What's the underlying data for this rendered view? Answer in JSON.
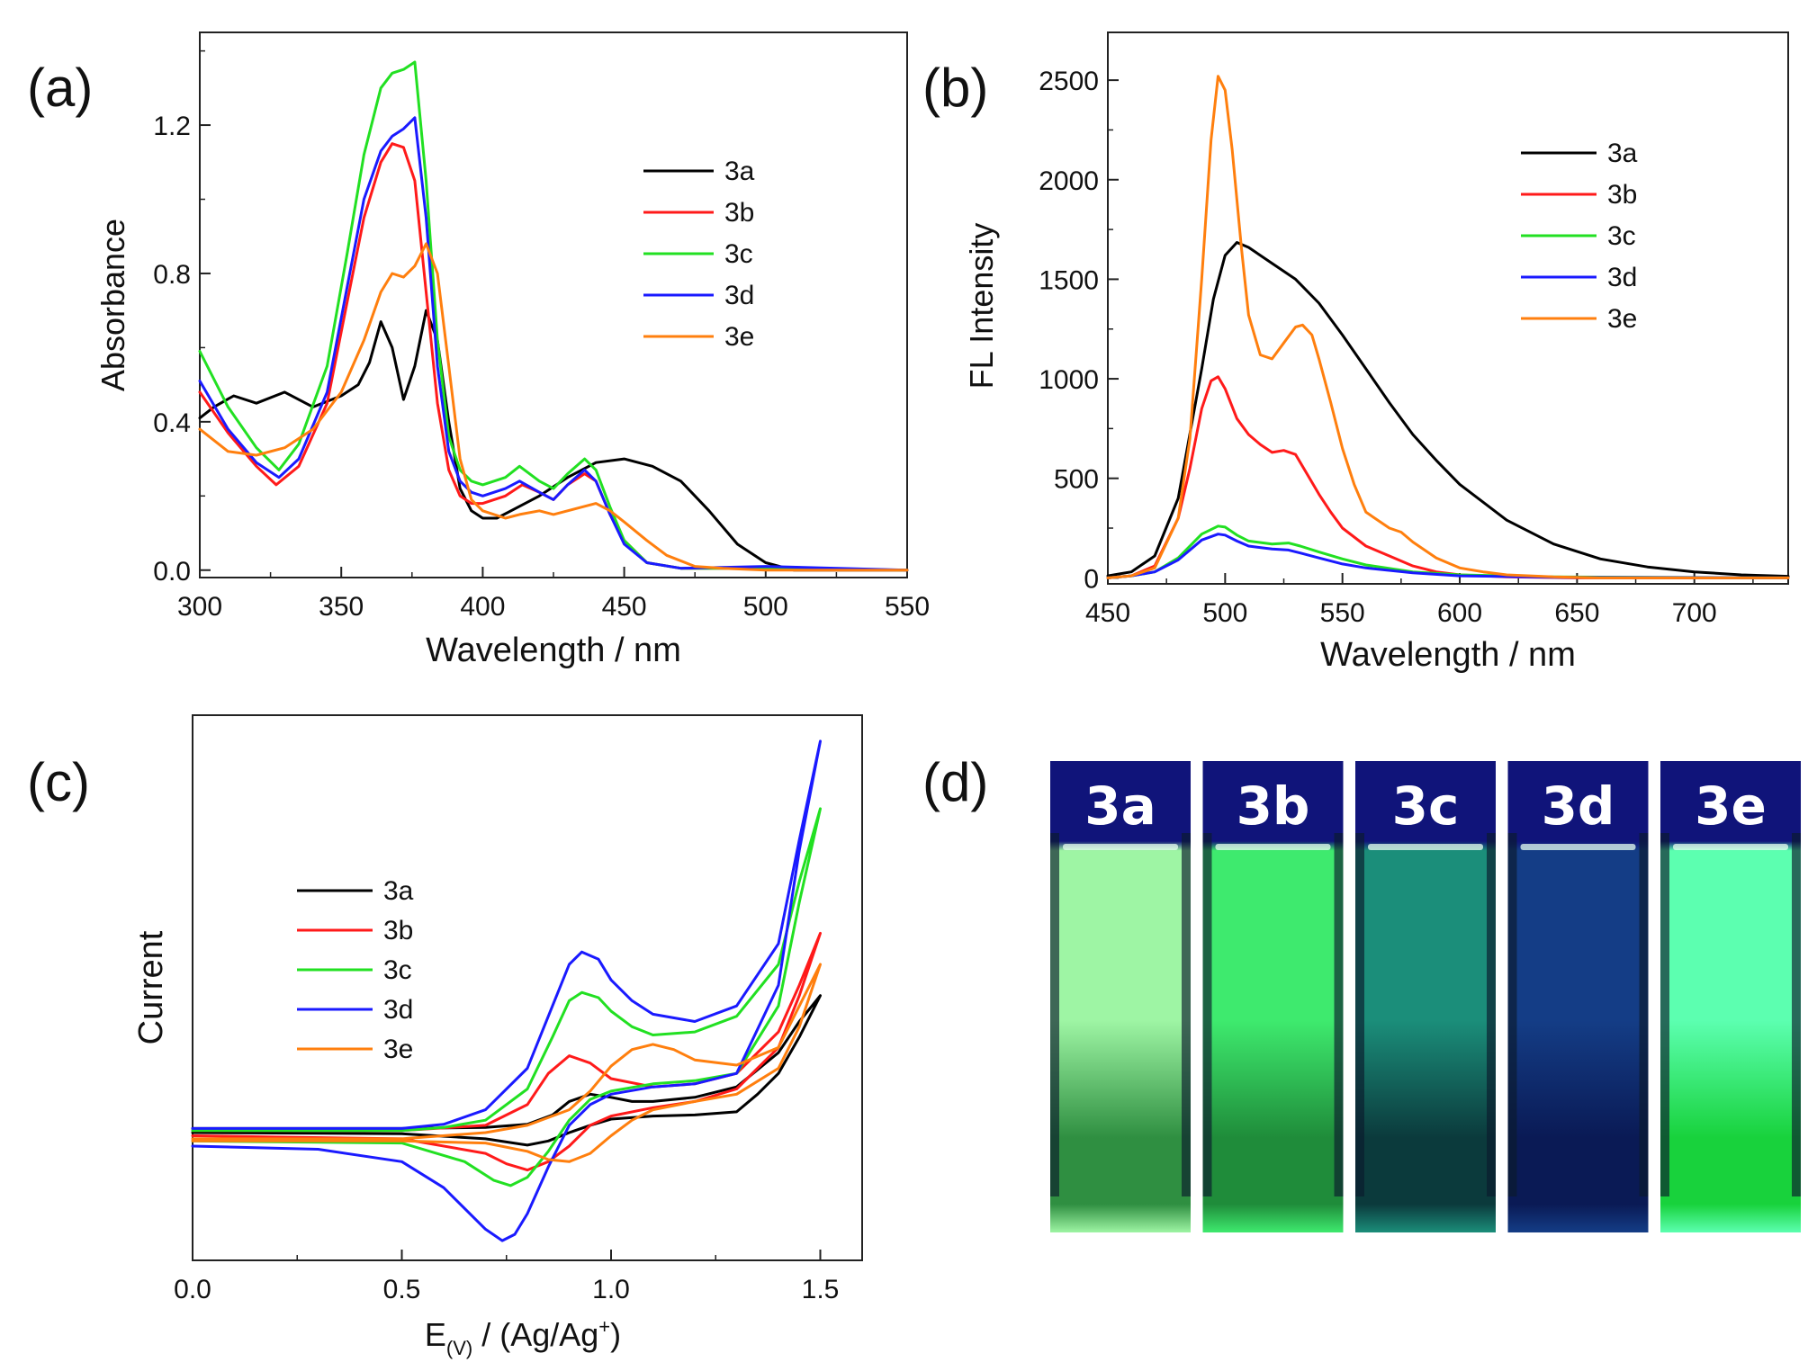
{
  "panel_labels": {
    "a": "(a)",
    "b": "(b)",
    "c": "(c)",
    "d": "(d)"
  },
  "series_colors": {
    "3a": "#000000",
    "3b": "#ff1a1a",
    "3c": "#22e022",
    "3d": "#1a1aff",
    "3e": "#ff7f0e"
  },
  "chart_data": [
    {
      "id": "a",
      "type": "line",
      "xlabel": "Wavelength / nm",
      "ylabel": "Absorbance",
      "xlim": [
        300,
        550
      ],
      "ylim": [
        -0.02,
        1.45
      ],
      "xticks": [
        300,
        350,
        400,
        450,
        500,
        550
      ],
      "yticks": [
        0.0,
        0.4,
        0.8,
        1.2
      ],
      "ytick_labels": [
        "0.0",
        "0.4",
        "0.8",
        "1.2"
      ],
      "legend_position": "right",
      "series": [
        {
          "name": "3a",
          "x": [
            300,
            305,
            312,
            320,
            330,
            340,
            350,
            356,
            360,
            364,
            368,
            372,
            376,
            380,
            384,
            388,
            392,
            396,
            400,
            405,
            410,
            420,
            430,
            440,
            450,
            460,
            470,
            480,
            490,
            500,
            510,
            550
          ],
          "y": [
            0.41,
            0.44,
            0.47,
            0.45,
            0.48,
            0.44,
            0.47,
            0.5,
            0.56,
            0.67,
            0.6,
            0.46,
            0.55,
            0.7,
            0.62,
            0.4,
            0.22,
            0.16,
            0.14,
            0.14,
            0.16,
            0.2,
            0.25,
            0.29,
            0.3,
            0.28,
            0.24,
            0.16,
            0.07,
            0.02,
            0.0,
            0.0
          ]
        },
        {
          "name": "3b",
          "x": [
            300,
            310,
            320,
            327,
            335,
            345,
            352,
            358,
            364,
            368,
            372,
            376,
            380,
            384,
            388,
            392,
            396,
            400,
            408,
            414,
            420,
            425,
            430,
            436,
            440,
            445,
            450,
            458,
            470,
            500,
            550
          ],
          "y": [
            0.48,
            0.37,
            0.28,
            0.23,
            0.28,
            0.45,
            0.72,
            0.95,
            1.1,
            1.15,
            1.14,
            1.05,
            0.75,
            0.45,
            0.27,
            0.2,
            0.18,
            0.18,
            0.2,
            0.23,
            0.21,
            0.19,
            0.23,
            0.26,
            0.24,
            0.15,
            0.08,
            0.02,
            0.005,
            0.005,
            0.0
          ]
        },
        {
          "name": "3c",
          "x": [
            300,
            310,
            320,
            328,
            335,
            345,
            352,
            358,
            364,
            368,
            372,
            376,
            380,
            384,
            388,
            392,
            396,
            400,
            408,
            413,
            420,
            425,
            430,
            436,
            440,
            445,
            450,
            458,
            470,
            500,
            550
          ],
          "y": [
            0.59,
            0.44,
            0.33,
            0.27,
            0.34,
            0.55,
            0.85,
            1.12,
            1.3,
            1.34,
            1.35,
            1.37,
            1.05,
            0.62,
            0.36,
            0.27,
            0.24,
            0.23,
            0.25,
            0.28,
            0.24,
            0.22,
            0.26,
            0.3,
            0.27,
            0.17,
            0.08,
            0.02,
            0.005,
            0.005,
            0.0
          ]
        },
        {
          "name": "3d",
          "x": [
            300,
            310,
            320,
            328,
            335,
            345,
            352,
            358,
            364,
            368,
            372,
            376,
            380,
            384,
            388,
            392,
            396,
            400,
            408,
            413,
            420,
            425,
            430,
            436,
            440,
            445,
            450,
            458,
            470,
            500,
            550
          ],
          "y": [
            0.51,
            0.38,
            0.29,
            0.25,
            0.3,
            0.48,
            0.76,
            1.0,
            1.13,
            1.17,
            1.19,
            1.22,
            0.95,
            0.55,
            0.32,
            0.24,
            0.21,
            0.2,
            0.22,
            0.24,
            0.21,
            0.19,
            0.23,
            0.27,
            0.24,
            0.15,
            0.07,
            0.02,
            0.005,
            0.01,
            0.0
          ]
        },
        {
          "name": "3e",
          "x": [
            300,
            310,
            320,
            330,
            340,
            350,
            358,
            364,
            368,
            372,
            376,
            380,
            384,
            388,
            392,
            396,
            400,
            408,
            413,
            420,
            425,
            430,
            435,
            440,
            445,
            450,
            458,
            465,
            475,
            485,
            500,
            550
          ],
          "y": [
            0.38,
            0.32,
            0.31,
            0.33,
            0.38,
            0.48,
            0.62,
            0.75,
            0.8,
            0.79,
            0.82,
            0.88,
            0.8,
            0.55,
            0.3,
            0.19,
            0.16,
            0.14,
            0.15,
            0.16,
            0.15,
            0.16,
            0.17,
            0.18,
            0.16,
            0.13,
            0.08,
            0.04,
            0.01,
            0.005,
            0.0,
            0.0
          ]
        }
      ]
    },
    {
      "id": "b",
      "type": "line",
      "xlabel": "Wavelength / nm",
      "ylabel": "FL Intensity",
      "xlim": [
        450,
        740
      ],
      "ylim": [
        -30,
        2740
      ],
      "xticks": [
        450,
        500,
        550,
        600,
        650,
        700
      ],
      "yticks": [
        0,
        500,
        1000,
        1500,
        2000,
        2500
      ],
      "legend_position": "top-right",
      "series": [
        {
          "name": "3a",
          "x": [
            450,
            460,
            470,
            480,
            490,
            495,
            500,
            505,
            510,
            520,
            530,
            540,
            550,
            560,
            570,
            580,
            590,
            600,
            620,
            640,
            660,
            680,
            700,
            720,
            740
          ],
          "y": [
            10,
            30,
            110,
            400,
            1050,
            1400,
            1620,
            1685,
            1660,
            1580,
            1500,
            1380,
            1220,
            1050,
            880,
            720,
            590,
            470,
            290,
            170,
            95,
            55,
            30,
            15,
            8
          ]
        },
        {
          "name": "3b",
          "x": [
            450,
            460,
            470,
            480,
            485,
            490,
            494,
            497,
            500,
            505,
            510,
            515,
            520,
            525,
            530,
            535,
            540,
            545,
            550,
            560,
            570,
            580,
            590,
            600,
            620,
            650,
            740
          ],
          "y": [
            0,
            10,
            60,
            300,
            550,
            850,
            990,
            1010,
            950,
            800,
            720,
            670,
            630,
            640,
            620,
            520,
            420,
            330,
            250,
            160,
            110,
            60,
            30,
            15,
            5,
            0,
            0
          ]
        },
        {
          "name": "3c",
          "x": [
            450,
            460,
            470,
            480,
            490,
            497,
            500,
            505,
            510,
            520,
            527,
            532,
            540,
            550,
            560,
            580,
            600,
            640,
            740
          ],
          "y": [
            0,
            10,
            30,
            100,
            220,
            260,
            255,
            215,
            185,
            170,
            175,
            160,
            130,
            95,
            65,
            30,
            15,
            5,
            0
          ]
        },
        {
          "name": "3d",
          "x": [
            450,
            460,
            470,
            480,
            490,
            497,
            500,
            505,
            510,
            520,
            527,
            532,
            540,
            550,
            560,
            580,
            600,
            640,
            740
          ],
          "y": [
            0,
            10,
            30,
            90,
            190,
            220,
            215,
            185,
            160,
            145,
            140,
            125,
            100,
            70,
            50,
            25,
            10,
            3,
            0
          ]
        },
        {
          "name": "3e",
          "x": [
            450,
            460,
            470,
            480,
            485,
            490,
            494,
            497,
            500,
            503,
            507,
            510,
            515,
            520,
            525,
            530,
            533,
            537,
            540,
            545,
            550,
            555,
            560,
            570,
            575,
            580,
            590,
            600,
            610,
            620,
            640,
            660,
            740
          ],
          "y": [
            0,
            10,
            50,
            300,
            700,
            1500,
            2200,
            2520,
            2450,
            2150,
            1650,
            1320,
            1120,
            1100,
            1180,
            1260,
            1270,
            1220,
            1100,
            880,
            650,
            470,
            330,
            250,
            230,
            180,
            100,
            50,
            30,
            15,
            5,
            0,
            0
          ]
        }
      ]
    },
    {
      "id": "c",
      "type": "line",
      "xlabel": "E(V) / (Ag/Ag+)",
      "ylabel": "Current",
      "xlim": [
        0.0,
        1.6
      ],
      "ylim": [
        -1.25,
        4.0
      ],
      "xticks": [
        0.0,
        0.5,
        1.0,
        1.5
      ],
      "xtick_labels": [
        "0.0",
        "0.5",
        "1.0",
        "1.5"
      ],
      "legend_position": "left",
      "series": [
        {
          "name": "3a",
          "x": [
            0.0,
            0.5,
            0.7,
            0.8,
            0.86,
            0.9,
            0.95,
            1.0,
            1.05,
            1.1,
            1.2,
            1.3,
            1.4,
            1.45,
            1.5,
            1.45,
            1.4,
            1.35,
            1.3,
            1.2,
            1.1,
            1.0,
            0.95,
            0.9,
            0.85,
            0.8,
            0.7,
            0.5,
            0.0
          ],
          "y": [
            0.02,
            0.02,
            0.03,
            0.06,
            0.15,
            0.28,
            0.35,
            0.32,
            0.28,
            0.28,
            0.32,
            0.42,
            0.75,
            1.05,
            1.3,
            0.9,
            0.55,
            0.35,
            0.18,
            0.15,
            0.14,
            0.11,
            0.05,
            -0.02,
            -0.1,
            -0.14,
            -0.08,
            -0.03,
            -0.02
          ]
        },
        {
          "name": "3b",
          "x": [
            0.0,
            0.5,
            0.7,
            0.8,
            0.85,
            0.9,
            0.95,
            1.0,
            1.1,
            1.2,
            1.3,
            1.4,
            1.45,
            1.5,
            1.45,
            1.4,
            1.3,
            1.2,
            1.1,
            1.0,
            0.95,
            0.9,
            0.85,
            0.8,
            0.75,
            0.7,
            0.5,
            0.0
          ],
          "y": [
            0.0,
            0.0,
            0.05,
            0.25,
            0.55,
            0.72,
            0.65,
            0.5,
            0.42,
            0.45,
            0.55,
            0.95,
            1.4,
            1.9,
            1.3,
            0.8,
            0.4,
            0.28,
            0.22,
            0.14,
            0.05,
            -0.15,
            -0.3,
            -0.38,
            -0.32,
            -0.22,
            -0.08,
            -0.05
          ]
        },
        {
          "name": "3c",
          "x": [
            0.0,
            0.5,
            0.6,
            0.7,
            0.8,
            0.86,
            0.9,
            0.93,
            0.97,
            1.0,
            1.05,
            1.1,
            1.2,
            1.3,
            1.4,
            1.45,
            1.5,
            1.45,
            1.4,
            1.3,
            1.2,
            1.1,
            1.0,
            0.95,
            0.9,
            0.85,
            0.8,
            0.76,
            0.72,
            0.65,
            0.5,
            0.0
          ],
          "y": [
            0.0,
            0.0,
            0.03,
            0.1,
            0.4,
            0.9,
            1.25,
            1.33,
            1.28,
            1.15,
            1.0,
            0.92,
            0.95,
            1.1,
            1.6,
            2.4,
            3.1,
            2.2,
            1.2,
            0.55,
            0.48,
            0.45,
            0.38,
            0.3,
            0.1,
            -0.2,
            -0.45,
            -0.53,
            -0.48,
            -0.3,
            -0.12,
            -0.1
          ]
        },
        {
          "name": "3d",
          "x": [
            0.0,
            0.5,
            0.6,
            0.7,
            0.8,
            0.86,
            0.9,
            0.93,
            0.97,
            1.0,
            1.05,
            1.1,
            1.2,
            1.3,
            1.4,
            1.45,
            1.5,
            1.45,
            1.4,
            1.3,
            1.2,
            1.1,
            1.0,
            0.95,
            0.9,
            0.85,
            0.8,
            0.77,
            0.74,
            0.7,
            0.6,
            0.5,
            0.3,
            0.0
          ],
          "y": [
            0.02,
            0.02,
            0.06,
            0.2,
            0.6,
            1.2,
            1.6,
            1.72,
            1.65,
            1.45,
            1.25,
            1.12,
            1.05,
            1.2,
            1.8,
            2.8,
            3.75,
            2.7,
            1.4,
            0.55,
            0.45,
            0.42,
            0.35,
            0.25,
            0.05,
            -0.35,
            -0.8,
            -1.0,
            -1.06,
            -0.95,
            -0.55,
            -0.3,
            -0.18,
            -0.15
          ]
        },
        {
          "name": "3e",
          "x": [
            0.0,
            0.5,
            0.7,
            0.8,
            0.9,
            0.95,
            1.0,
            1.05,
            1.1,
            1.15,
            1.2,
            1.3,
            1.4,
            1.45,
            1.5,
            1.45,
            1.4,
            1.3,
            1.2,
            1.1,
            1.05,
            1.0,
            0.95,
            0.9,
            0.85,
            0.8,
            0.7,
            0.5,
            0.0
          ],
          "y": [
            -0.08,
            -0.08,
            -0.02,
            0.05,
            0.2,
            0.38,
            0.62,
            0.78,
            0.83,
            0.78,
            0.68,
            0.63,
            0.8,
            1.2,
            1.6,
            1.0,
            0.6,
            0.35,
            0.28,
            0.2,
            0.1,
            -0.05,
            -0.22,
            -0.3,
            -0.28,
            -0.2,
            -0.12,
            -0.1,
            -0.1
          ]
        }
      ]
    }
  ],
  "vials": [
    {
      "label": "3a",
      "glow": "#9ef5a4",
      "glow_low": "#2f8f41"
    },
    {
      "label": "3b",
      "glow": "#3eea6e",
      "glow_low": "#1f8c3a"
    },
    {
      "label": "3c",
      "glow": "#1b8e7a",
      "glow_low": "#0b3a3c"
    },
    {
      "label": "3d",
      "glow": "#143d86",
      "glow_low": "#0a1a55"
    },
    {
      "label": "3e",
      "glow": "#5cffb0",
      "glow_low": "#18d23c"
    }
  ]
}
